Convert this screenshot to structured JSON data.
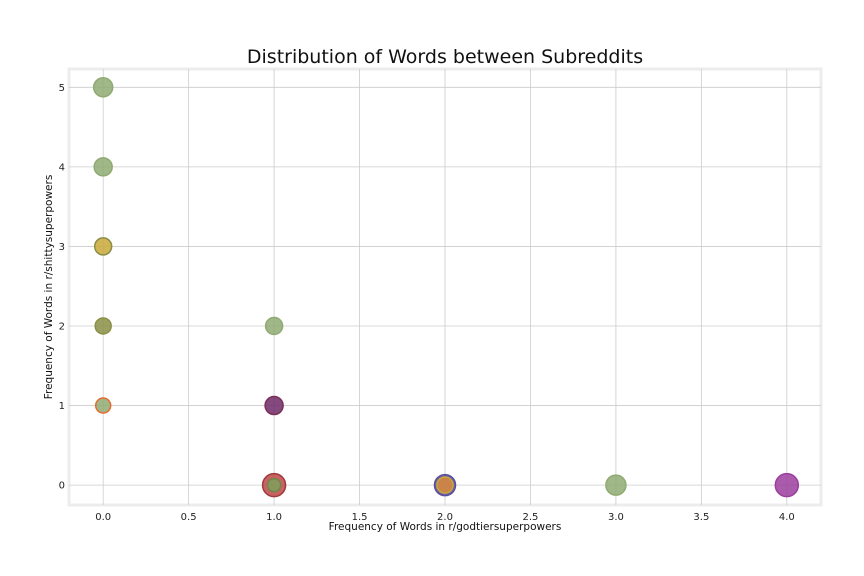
{
  "chart_data": {
    "type": "scatter",
    "title": "Distribution of Words between Subreddits",
    "xlabel": "Frequency of Words in r/godtiersuperpowers",
    "ylabel": "Frequency of Words in r/shittysuperpowers",
    "xlim": [
      -0.2,
      4.2
    ],
    "ylim": [
      -0.25,
      5.23
    ],
    "xticks": [
      "0.0",
      "0.5",
      "1.0",
      "1.5",
      "2.0",
      "2.5",
      "3.0",
      "3.5",
      "4.0"
    ],
    "yticks": [
      "0",
      "1",
      "2",
      "3",
      "4",
      "5"
    ],
    "grid": true,
    "points": [
      {
        "x": 0,
        "y": 5,
        "size": 19,
        "fill": "#8faa73",
        "stroke": "#8faa73"
      },
      {
        "x": 0,
        "y": 4,
        "size": 18,
        "fill": "#8faa73",
        "stroke": "#8faa73"
      },
      {
        "x": 0,
        "y": 3,
        "size": 17,
        "fill": "#c9a838",
        "stroke": "#8a8f45"
      },
      {
        "x": 0,
        "y": 2,
        "size": 16,
        "fill": "#8a8f45",
        "stroke": "#8a8f45"
      },
      {
        "x": 0,
        "y": 1,
        "size": 15,
        "fill": "#8faa73",
        "stroke": "#e46c2e"
      },
      {
        "x": 1,
        "y": 2,
        "size": 17,
        "fill": "#8faa73",
        "stroke": "#8faa73"
      },
      {
        "x": 1,
        "y": 1,
        "size": 18,
        "fill": "#6e2a6a",
        "stroke": "#7a2f55"
      },
      {
        "x": 1,
        "y": 0,
        "size": 23,
        "fill": "#c04848",
        "stroke": "#a03a3a"
      },
      {
        "x": 1,
        "y": 0,
        "size": 13,
        "fill": "#7ea05a",
        "stroke": "#6a8a4a"
      },
      {
        "x": 2,
        "y": 0,
        "size": 21,
        "fill": "#5a4d9a",
        "stroke": "#5a4d9a"
      },
      {
        "x": 2,
        "y": 0,
        "size": 16,
        "fill": "#d9893a",
        "stroke": "#c9a838"
      },
      {
        "x": 3,
        "y": 0,
        "size": 20,
        "fill": "#8faa73",
        "stroke": "#8faa73"
      },
      {
        "x": 4,
        "y": 0,
        "size": 23,
        "fill": "#9b3e9e",
        "stroke": "#9b3e9e"
      }
    ]
  }
}
